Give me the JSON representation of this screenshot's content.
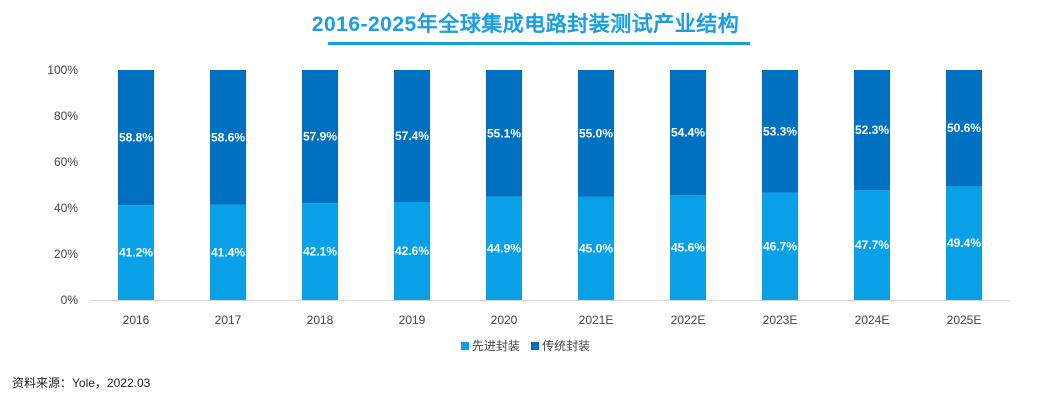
{
  "chart_data": {
    "type": "bar",
    "stacked": true,
    "title": "2016-2025年全球集成电路封装测试产业结构",
    "xlabel": "",
    "ylabel": "",
    "ylim": [
      0,
      100
    ],
    "yticks": [
      "0%",
      "20%",
      "40%",
      "60%",
      "80%",
      "100%"
    ],
    "categories": [
      "2016",
      "2017",
      "2018",
      "2019",
      "2020",
      "2021E",
      "2022E",
      "2023E",
      "2024E",
      "2025E"
    ],
    "series": [
      {
        "name": "先进封装",
        "color": "#0aa0e8",
        "values": [
          41.2,
          41.4,
          42.1,
          42.6,
          44.9,
          45.0,
          45.6,
          46.7,
          47.7,
          49.4
        ],
        "labels": [
          "41.2%",
          "41.4%",
          "42.1%",
          "42.6%",
          "44.9%",
          "45.0%",
          "45.6%",
          "46.7%",
          "47.7%",
          "49.4%"
        ]
      },
      {
        "name": "传统封装",
        "color": "#0070c0",
        "values": [
          58.8,
          58.6,
          57.9,
          57.4,
          55.1,
          55.0,
          54.4,
          53.3,
          52.3,
          50.6
        ],
        "labels": [
          "58.8%",
          "58.6%",
          "57.9%",
          "57.4%",
          "55.1%",
          "55.0%",
          "54.4%",
          "53.3%",
          "52.3%",
          "50.6%"
        ]
      }
    ],
    "grid": false,
    "legend_position": "bottom-center"
  },
  "colors": {
    "title": "#1a9ee0",
    "title_rule": "#1a9ee0"
  },
  "source": "资料来源：Yole，2022.03"
}
